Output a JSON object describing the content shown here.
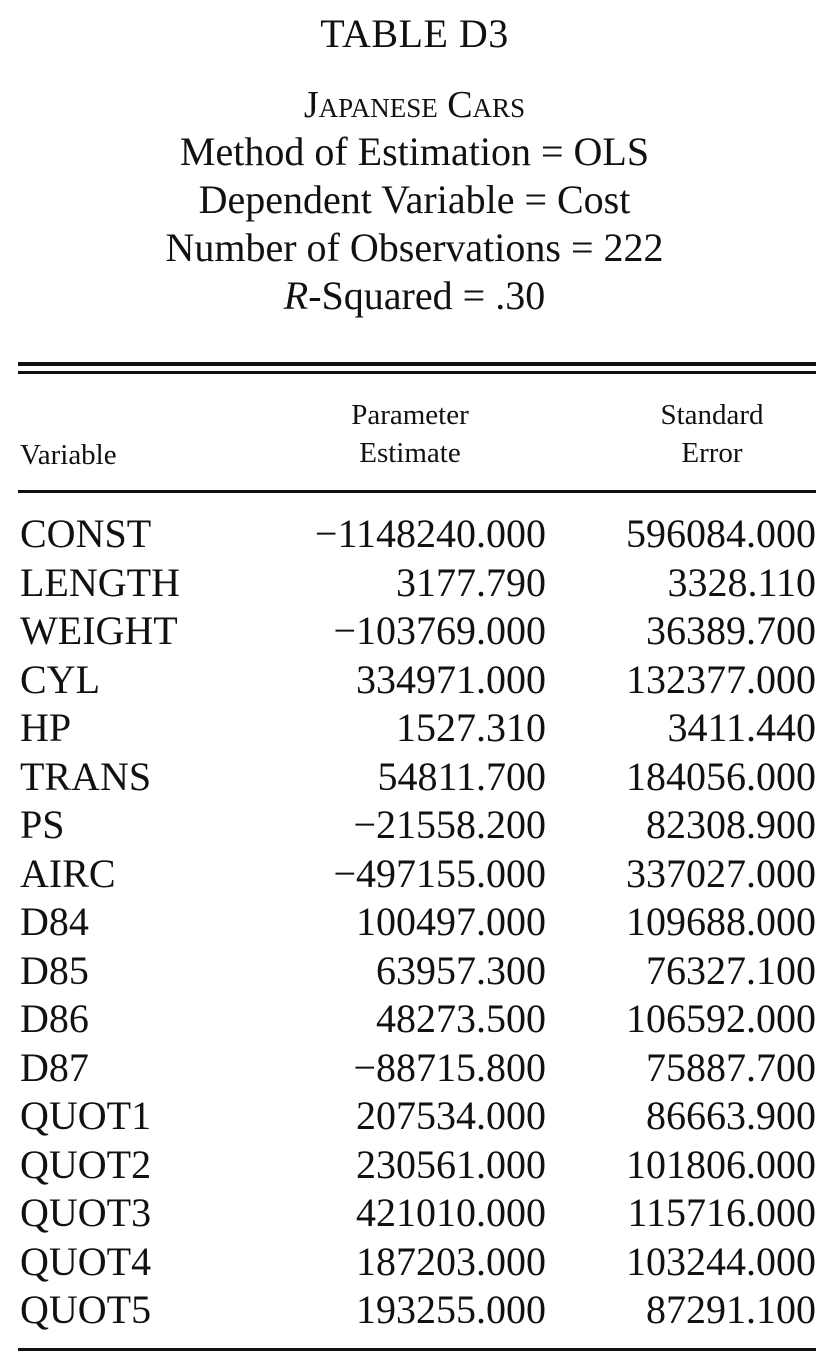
{
  "table": {
    "title": "TABLE D3",
    "subtitle": "Japanese Cars",
    "method_line": "Method of Estimation = OLS",
    "dependent_line": "Dependent Variable = Cost",
    "observations_line": "Number of Observations = 222",
    "rsquared_prefix": "R",
    "rsquared_rest": "-Squared = .30"
  },
  "columns": {
    "variable": "Variable",
    "estimate_line1": "Parameter",
    "estimate_line2": "Estimate",
    "se_line1": "Standard",
    "se_line2": "Error"
  },
  "rows": [
    {
      "variable": "CONST",
      "estimate": "−1148240.000",
      "se": "596084.000"
    },
    {
      "variable": "LENGTH",
      "estimate": "3177.790",
      "se": "3328.110"
    },
    {
      "variable": "WEIGHT",
      "estimate": "−103769.000",
      "se": "36389.700"
    },
    {
      "variable": "CYL",
      "estimate": "334971.000",
      "se": "132377.000"
    },
    {
      "variable": "HP",
      "estimate": "1527.310",
      "se": "3411.440"
    },
    {
      "variable": "TRANS",
      "estimate": "54811.700",
      "se": "184056.000"
    },
    {
      "variable": "PS",
      "estimate": "−21558.200",
      "se": "82308.900"
    },
    {
      "variable": "AIRC",
      "estimate": "−497155.000",
      "se": "337027.000"
    },
    {
      "variable": "D84",
      "estimate": "100497.000",
      "se": "109688.000"
    },
    {
      "variable": "D85",
      "estimate": "63957.300",
      "se": "76327.100"
    },
    {
      "variable": "D86",
      "estimate": "48273.500",
      "se": "106592.000"
    },
    {
      "variable": "D87",
      "estimate": "−88715.800",
      "se": "75887.700"
    },
    {
      "variable": "QUOT1",
      "estimate": "207534.000",
      "se": "86663.900"
    },
    {
      "variable": "QUOT2",
      "estimate": "230561.000",
      "se": "101806.000"
    },
    {
      "variable": "QUOT3",
      "estimate": "421010.000",
      "se": "115716.000"
    },
    {
      "variable": "QUOT4",
      "estimate": "187203.000",
      "se": "103244.000"
    },
    {
      "variable": "QUOT5",
      "estimate": "193255.000",
      "se": "87291.100"
    }
  ]
}
